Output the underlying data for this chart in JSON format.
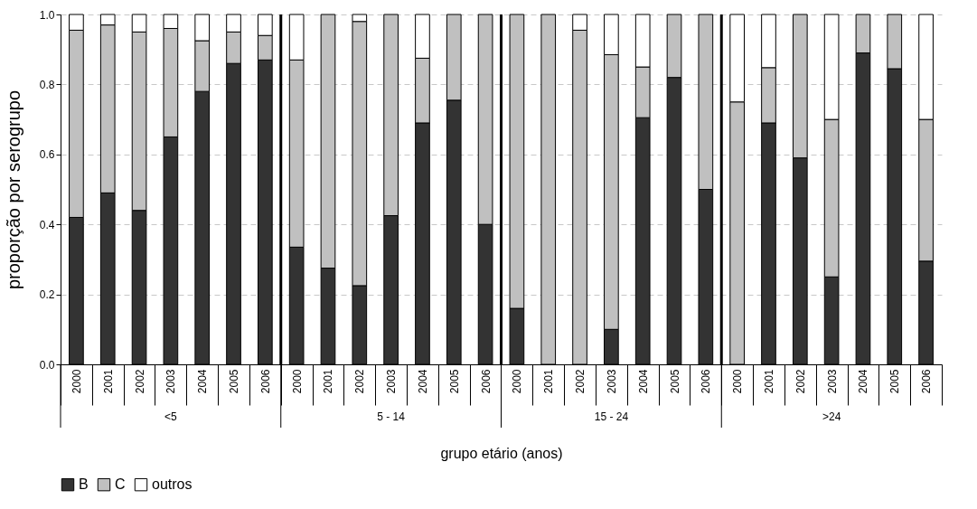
{
  "chart_data": {
    "type": "bar",
    "stacked": true,
    "ylabel": "proporção por serogrupo",
    "xlabel": "grupo etário (anos)",
    "categories": [
      "2000",
      "2001",
      "2002",
      "2003",
      "2004",
      "2005",
      "2006",
      "2000",
      "2001",
      "2002",
      "2003",
      "2004",
      "2005",
      "2006",
      "2000",
      "2001",
      "2002",
      "2003",
      "2004",
      "2005",
      "2006",
      "2000",
      "2001",
      "2002",
      "2003",
      "2004",
      "2005",
      "2006"
    ],
    "annotations": [
      "<5",
      "5 - 14",
      "15 - 24",
      ">24"
    ],
    "series": [
      {
        "name": "B",
        "color": "#333333",
        "values": [
          0.42,
          0.49,
          0.44,
          0.65,
          0.78,
          0.86,
          0.87,
          0.335,
          0.275,
          0.225,
          0.425,
          0.69,
          0.755,
          0.4,
          0.16,
          0,
          0,
          0.1,
          0.705,
          0.82,
          0.5,
          0,
          0.69,
          0.59,
          0.25,
          0.89,
          0.845,
          0.295
        ]
      },
      {
        "name": "C",
        "color": "#c0c0c0",
        "values": [
          0.535,
          0.48,
          0.51,
          0.31,
          0.145,
          0.09,
          0.07,
          0.535,
          0.725,
          0.755,
          0.575,
          0.185,
          0.245,
          0.6,
          0.84,
          1,
          0.955,
          0.785,
          0.145,
          0.18,
          0.5,
          0.75,
          0.158,
          0.41,
          0.45,
          0.11,
          0.155,
          0.405
        ]
      },
      {
        "name": "outros",
        "color": "#ffffff",
        "values": [
          0.045,
          0.03,
          0.05,
          0.04,
          0.075,
          0.05,
          0.06,
          0.13,
          0,
          0.02,
          0,
          0.125,
          0,
          0,
          0,
          0,
          0.045,
          0.115,
          0.15,
          0,
          0,
          0.25,
          0.152,
          0,
          0.3,
          0,
          0,
          0.3
        ]
      }
    ],
    "ylim": [
      0,
      1
    ],
    "yticks": [
      {
        "value": 0,
        "label": "0.0"
      },
      {
        "value": 0.2,
        "label": "0.2"
      },
      {
        "value": 0.4,
        "label": "0.4"
      },
      {
        "value": 0.6,
        "label": "0.6"
      },
      {
        "value": 0.8,
        "label": "0.8"
      },
      {
        "value": 1,
        "label": "1.0"
      }
    ],
    "grid": "y",
    "legend": "bottom"
  }
}
